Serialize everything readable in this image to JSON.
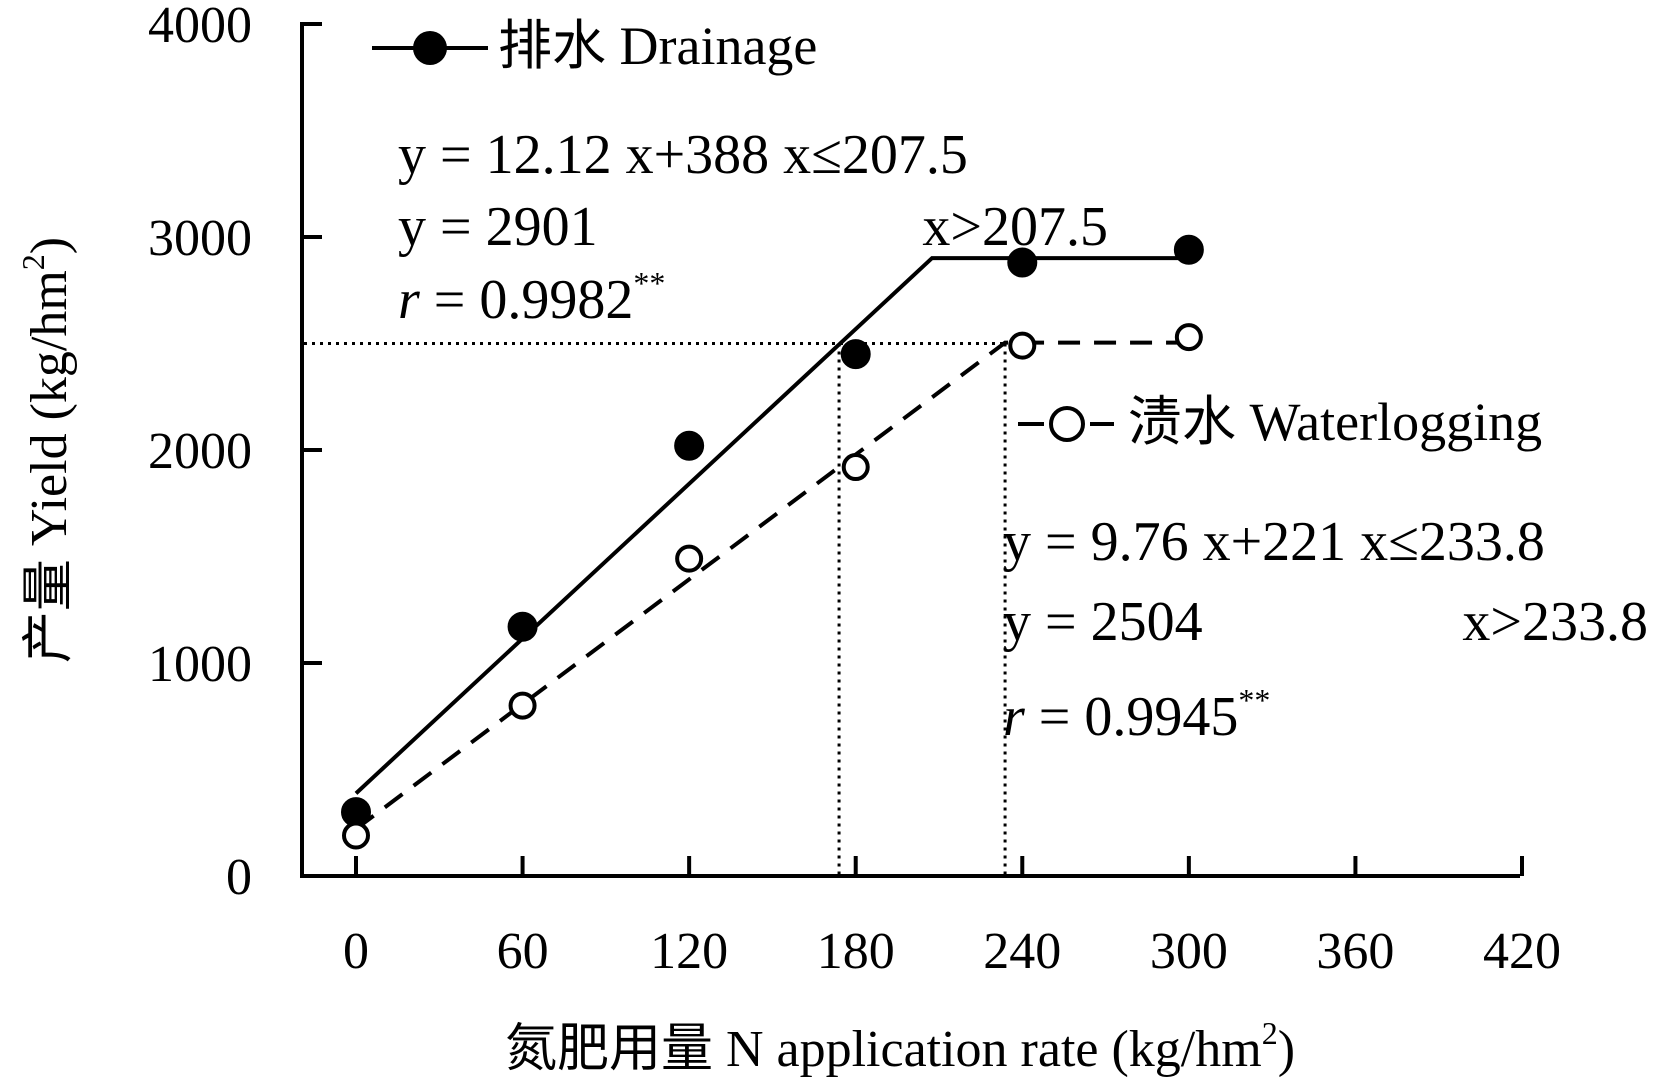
{
  "chart_data": {
    "type": "scatter",
    "xlabel": "氮肥用量 N application rate (kg/hm",
    "xlabel_sup": "2",
    "xlabel_end": ")",
    "ylabel": "产量 Yield (kg/hm",
    "ylabel_sup": "2",
    "ylabel_end": ")",
    "xlim": [
      0,
      420
    ],
    "ylim": [
      0,
      4000
    ],
    "x_ticks": [
      "0",
      "60",
      "120",
      "180",
      "240",
      "300",
      "360",
      "420"
    ],
    "y_ticks": [
      "0",
      "1000",
      "2000",
      "3000",
      "4000"
    ],
    "series": [
      {
        "name": "排水 Drainage",
        "marker": "filled-circle",
        "line": "solid",
        "x": [
          0,
          60,
          120,
          180,
          240,
          300
        ],
        "y": [
          300,
          1170,
          2020,
          2450,
          2880,
          2940
        ],
        "fit": {
          "slope": 12.12,
          "intercept": 388,
          "breakpoint": 207.5,
          "plateau": 2901
        },
        "equation_lines": [
          "y = 12.12 x+388 x≤207.5",
          "y = 2901",
          "x>207.5"
        ],
        "r_label": "r",
        "r_value": " = 0.9982",
        "r_sig": "**"
      },
      {
        "name": "渍水 Waterlogging",
        "marker": "open-circle",
        "line": "dashed",
        "x": [
          0,
          60,
          120,
          180,
          240,
          300
        ],
        "y": [
          190,
          800,
          1490,
          1920,
          2490,
          2530
        ],
        "fit": {
          "slope": 9.76,
          "intercept": 221,
          "breakpoint": 233.8,
          "plateau": 2504
        },
        "equation_lines": [
          "y = 9.76 x+221 x≤233.8",
          "y = 2504",
          "x>233.8"
        ],
        "r_label": "r",
        "r_value": " = 0.9945",
        "r_sig": "**"
      }
    ],
    "reference_lines": {
      "y": 2500,
      "x_values": [
        174,
        233.8
      ],
      "style": "dotted"
    }
  }
}
